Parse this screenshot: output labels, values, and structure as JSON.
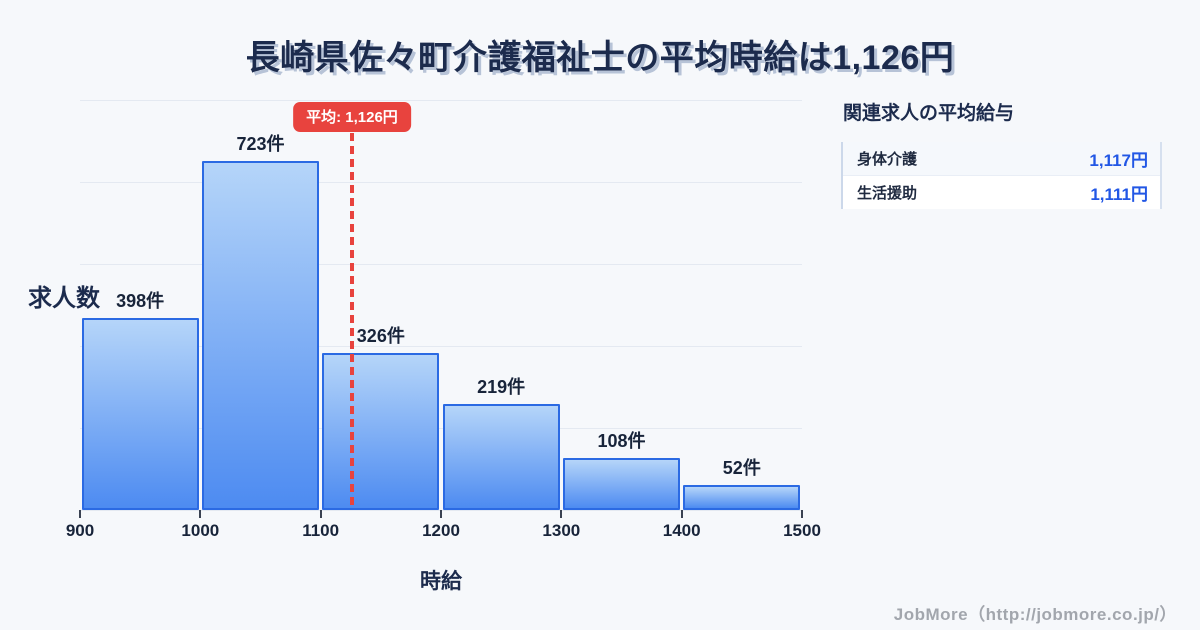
{
  "page": {
    "title": "長崎県佐々町介護福祉士の平均時給は1,126円",
    "footer_credit": "JobMore（http://jobmore.co.jp/）",
    "background_color": "#f6f8fb",
    "title_color": "#1c2b4d"
  },
  "chart_data": {
    "type": "bar",
    "title": "長崎県佐々町介護福祉士の平均時給は1,126円",
    "xlabel": "時給",
    "ylabel": "求人数",
    "bin_edges": [
      900,
      1000,
      1100,
      1200,
      1300,
      1400,
      1500
    ],
    "x_tick_labels": [
      "900",
      "1000",
      "1100",
      "1200",
      "1300",
      "1400",
      "1500"
    ],
    "categories": [
      "900-1000",
      "1000-1100",
      "1100-1200",
      "1200-1300",
      "1300-1400",
      "1400-1500"
    ],
    "values": [
      398,
      723,
      326,
      219,
      108,
      52
    ],
    "bar_value_labels": [
      "398件",
      "723件",
      "326件",
      "219件",
      "108件",
      "52件"
    ],
    "unit": "件",
    "ylim": [
      0,
      850
    ],
    "grid": true,
    "gridline_count": 6,
    "legend": null,
    "mean_line": {
      "value": 1126,
      "label": "平均: 1,126円"
    },
    "colors": {
      "bar_gradient_top": "#b5d5f9",
      "bar_gradient_bottom": "#4d8bf1",
      "bar_border": "#2b6ae3",
      "mean_line": "#e8433e",
      "gridline": "#e4e9f1"
    }
  },
  "side_panel": {
    "heading": "関連求人の平均給与",
    "rows": [
      {
        "label": "身体介護",
        "value": "1,117円"
      },
      {
        "label": "生活援助",
        "value": "1,111円"
      }
    ],
    "value_color": "#2257e5"
  }
}
